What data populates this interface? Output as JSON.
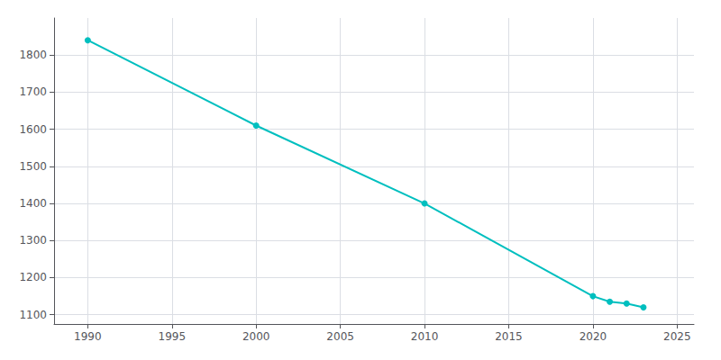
{
  "chart_data": {
    "type": "line",
    "x": [
      1990,
      2000,
      2010,
      2020,
      2021,
      2022,
      2023
    ],
    "values": [
      1840,
      1610,
      1400,
      1150,
      1135,
      1130,
      1120
    ],
    "color": "#00BFBF",
    "marker": "circle",
    "xlim": [
      1988,
      2026
    ],
    "ylim": [
      1075,
      1900
    ],
    "xticks": [
      1990,
      1995,
      2000,
      2005,
      2010,
      2015,
      2020,
      2025
    ],
    "yticks": [
      1100,
      1200,
      1300,
      1400,
      1500,
      1600,
      1700,
      1800
    ],
    "grid": true
  }
}
